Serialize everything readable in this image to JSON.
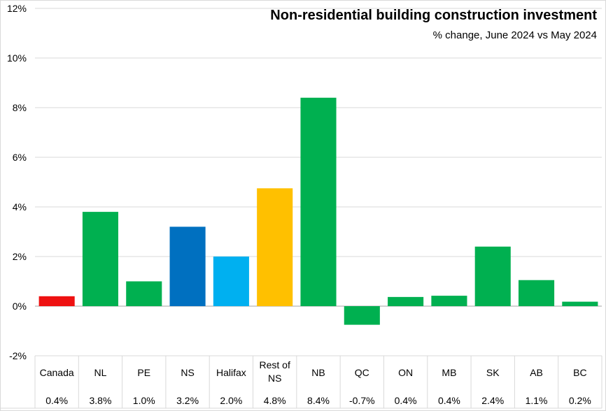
{
  "chart_data": {
    "type": "bar",
    "title": "Non-residential building construction investment",
    "subtitle": "% change, June 2024 vs May 2024",
    "categories": [
      "Canada",
      "NL",
      "PE",
      "NS",
      "Halifax",
      "Rest of NS",
      "NB",
      "QC",
      "ON",
      "MB",
      "SK",
      "AB",
      "BC"
    ],
    "values": [
      0.4,
      3.8,
      1.0,
      3.2,
      2.0,
      4.75,
      8.4,
      -0.75,
      0.37,
      0.42,
      2.4,
      1.05,
      0.18
    ],
    "value_labels": [
      "0.4%",
      "3.8%",
      "1.0%",
      "3.2%",
      "2.0%",
      "4.8%",
      "8.4%",
      "-0.7%",
      "0.4%",
      "0.4%",
      "2.4%",
      "1.1%",
      "0.2%"
    ],
    "colors": [
      "#ee1111",
      "#00b050",
      "#00b050",
      "#0070c0",
      "#00b0f0",
      "#ffc000",
      "#00b050",
      "#00b050",
      "#00b050",
      "#00b050",
      "#00b050",
      "#00b050",
      "#00b050"
    ],
    "ylim": [
      -2,
      12
    ],
    "yticks": [
      -2,
      0,
      2,
      4,
      6,
      8,
      10,
      12
    ],
    "ytick_labels": [
      "-2%",
      "0%",
      "2%",
      "4%",
      "6%",
      "8%",
      "10%",
      "12%"
    ],
    "grid": true,
    "legend": "none"
  }
}
